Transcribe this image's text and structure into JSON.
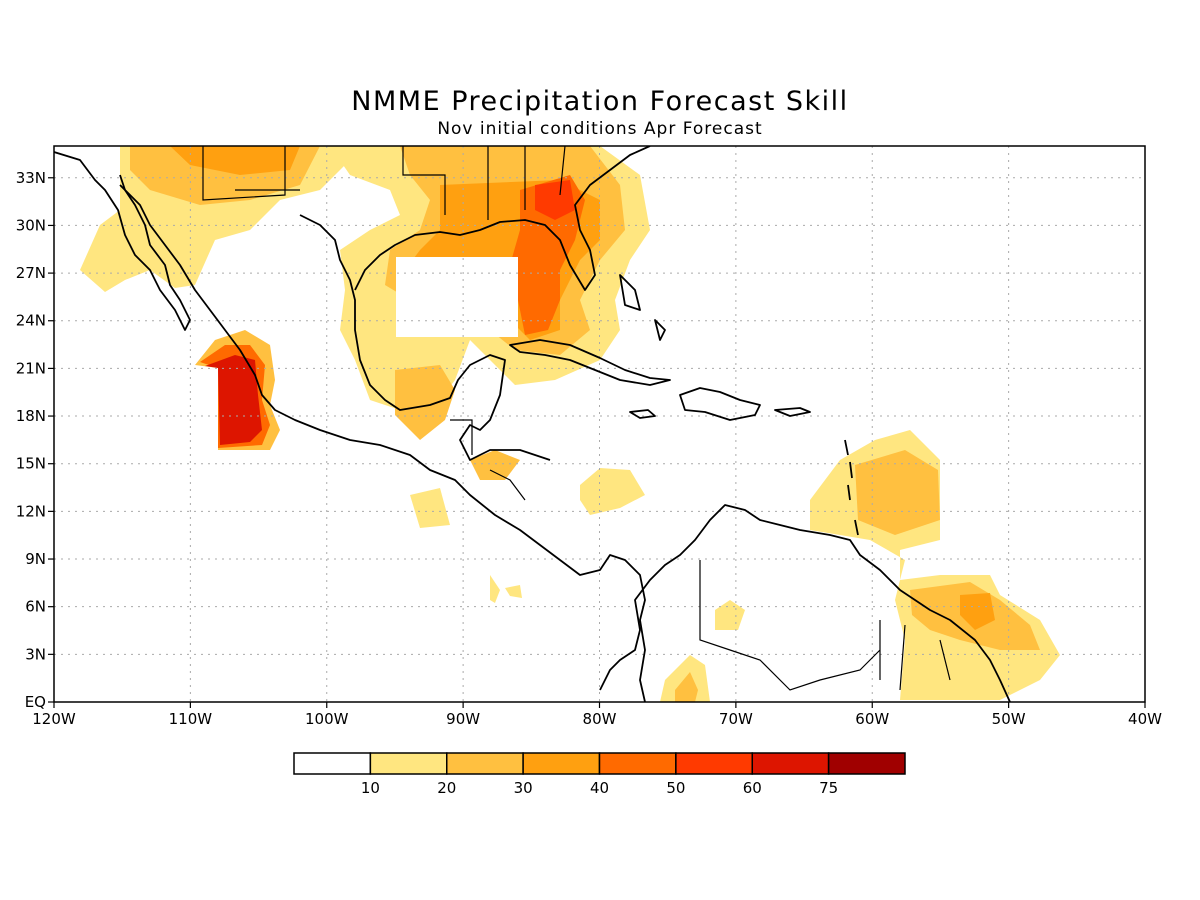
{
  "title": "NMME Precipitation Forecast Skill",
  "subtitle": "Nov initial conditions  Apr Forecast",
  "chart_data": {
    "type": "heatmap",
    "title": "NMME Precipitation Forecast Skill",
    "subtitle": "Nov initial conditions  Apr Forecast",
    "lon_range": [
      -120,
      -40
    ],
    "lat_range": [
      0,
      35
    ],
    "grid": true,
    "x_ticks": [
      "120W",
      "110W",
      "100W",
      "90W",
      "80W",
      "70W",
      "60W",
      "50W",
      "40W"
    ],
    "y_ticks": [
      "EQ",
      "3N",
      "6N",
      "9N",
      "12N",
      "15N",
      "18N",
      "21N",
      "24N",
      "27N",
      "30N",
      "33N"
    ],
    "colorbar": {
      "levels": [
        "10",
        "20",
        "30",
        "40",
        "50",
        "60",
        "75"
      ],
      "colors": [
        "#ffffff",
        "#ffe680",
        "#ffc040",
        "#ffa010",
        "#ff6a00",
        "#ff3a00",
        "#dd1500",
        "#a00000"
      ]
    }
  }
}
